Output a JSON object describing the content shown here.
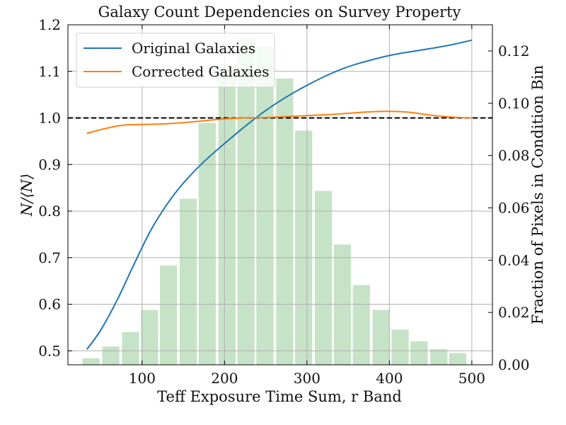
{
  "chart_data": {
    "type": "line",
    "title": "Galaxy Count Dependencies on Survey Property",
    "xlabel": "Teff Exposure Time Sum, r Band",
    "ylabel": "N/⟨N⟩",
    "ylabel_right": "Fraction of Pixels in Condition Bin",
    "xlim": [
      10,
      525
    ],
    "ylim": [
      0.47,
      1.2
    ],
    "ylim_right": [
      0.0,
      0.13
    ],
    "xticks": [
      100,
      200,
      300,
      400,
      500
    ],
    "xtick_labels": [
      "100",
      "200",
      "300",
      "400",
      "500"
    ],
    "yticks": [
      0.5,
      0.6,
      0.7,
      0.8,
      0.9,
      1.0,
      1.1,
      1.2
    ],
    "ytick_labels": [
      "0.5",
      "0.6",
      "0.7",
      "0.8",
      "0.9",
      "1.0",
      "1.1",
      "1.2"
    ],
    "yticks_right": [
      0.0,
      0.02,
      0.04,
      0.06,
      0.08,
      0.1,
      0.12
    ],
    "ytick_labels_right": [
      "0.00",
      "0.02",
      "0.04",
      "0.06",
      "0.08",
      "0.10",
      "0.12"
    ],
    "grid": true,
    "legend_position": "top-left",
    "reference_line": {
      "y": 1.0,
      "style": "dashed",
      "color": "#000000"
    },
    "series": [
      {
        "name": "Original Galaxies",
        "color": "#1f77b4",
        "x": [
          33,
          50,
          70,
          90,
          110,
          130,
          150,
          175,
          200,
          225,
          250,
          275,
          300,
          325,
          350,
          375,
          400,
          425,
          450,
          475,
          500
        ],
        "y": [
          0.503,
          0.545,
          0.61,
          0.685,
          0.757,
          0.814,
          0.86,
          0.906,
          0.945,
          0.982,
          1.016,
          1.045,
          1.07,
          1.092,
          1.11,
          1.123,
          1.134,
          1.142,
          1.149,
          1.157,
          1.167
        ]
      },
      {
        "name": "Corrected Galaxies",
        "color": "#ff7f0e",
        "x": [
          33,
          50,
          75,
          100,
          125,
          150,
          175,
          200,
          225,
          250,
          275,
          300,
          325,
          350,
          375,
          400,
          425,
          450,
          475,
          500
        ],
        "y": [
          0.967,
          0.975,
          0.984,
          0.986,
          0.987,
          0.99,
          0.994,
          0.998,
          1.0,
          1.001,
          1.003,
          1.005,
          1.007,
          1.01,
          1.013,
          1.014,
          1.012,
          1.006,
          1.002,
          1.0
        ]
      }
    ],
    "histogram": {
      "color": "#c7e3c7",
      "axis": "right",
      "bin_width": 23.4,
      "centers": [
        38,
        62,
        86,
        109,
        132,
        156,
        179,
        203,
        226,
        249,
        273,
        296,
        320,
        343,
        366,
        390,
        413,
        436,
        460,
        483
      ],
      "values": [
        0.0025,
        0.007,
        0.0125,
        0.021,
        0.038,
        0.0635,
        0.0925,
        0.1135,
        0.1245,
        0.1215,
        0.1095,
        0.0895,
        0.0665,
        0.046,
        0.0305,
        0.021,
        0.0135,
        0.009,
        0.006,
        0.0045
      ]
    }
  }
}
